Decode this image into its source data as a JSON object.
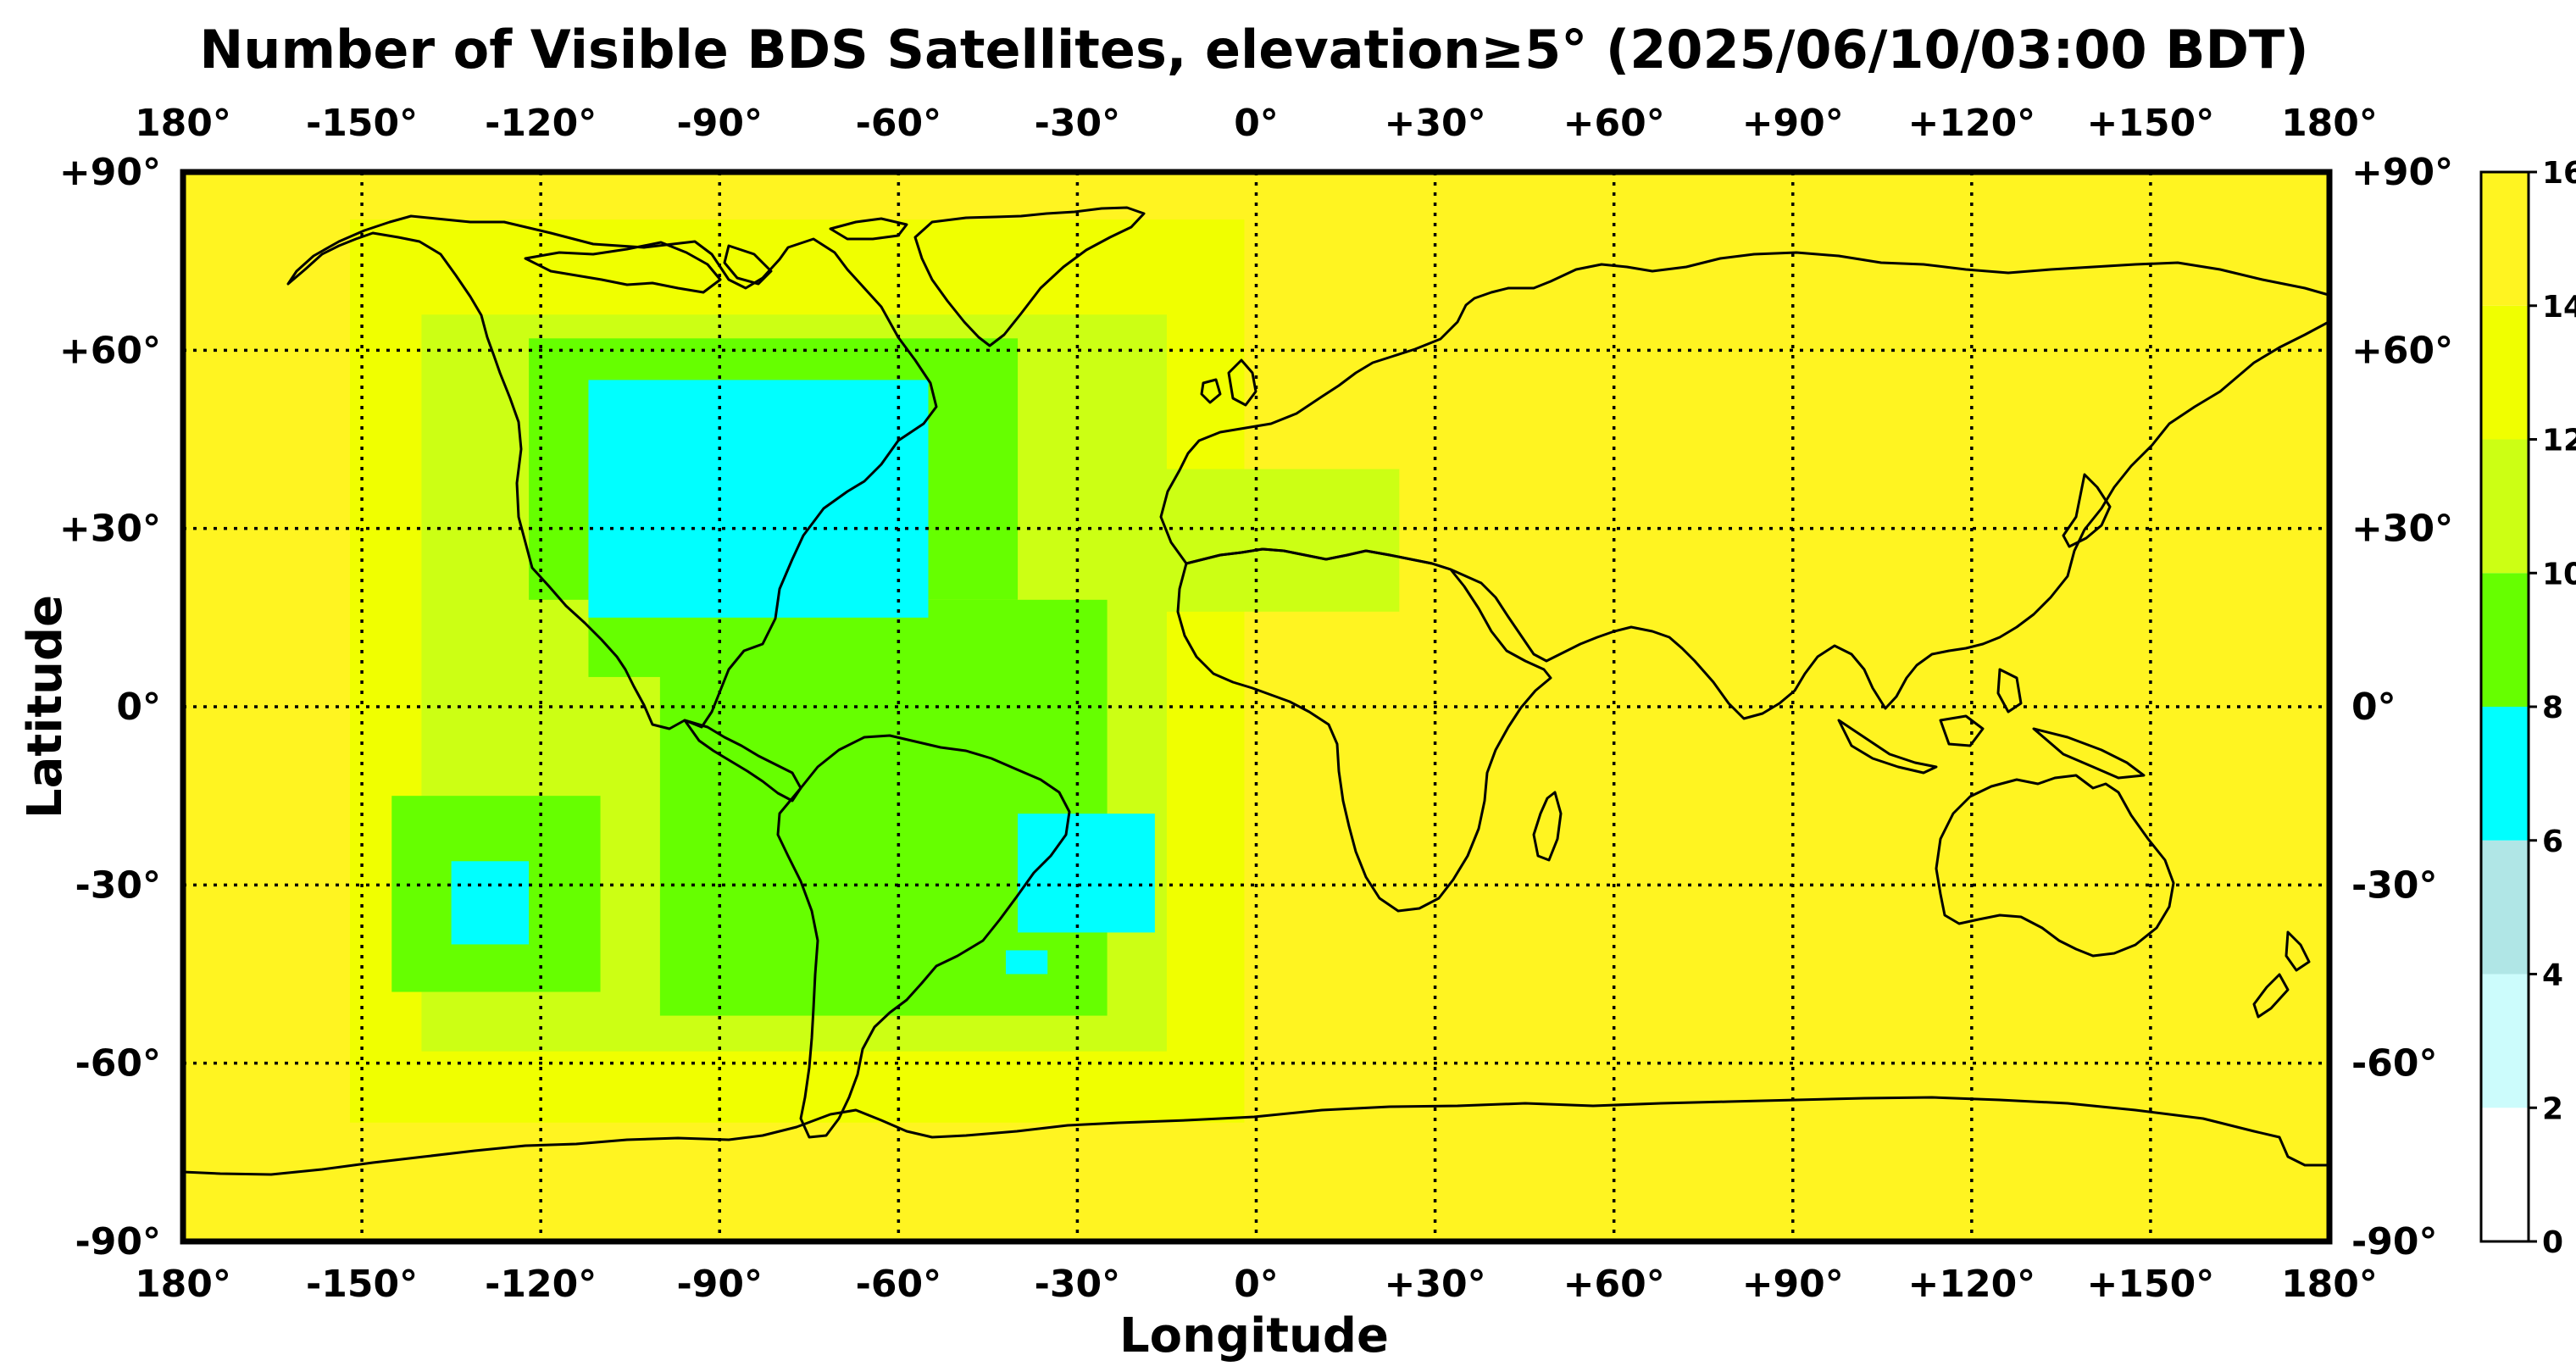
{
  "chart_data": {
    "type": "heatmap",
    "title": "Number of Visible BDS Satellites, elevation≥5° (2025/06/10/03:00 BDT)",
    "xlabel": "Longitude",
    "ylabel": "Latitude",
    "xlim": [
      -180,
      180
    ],
    "ylim": [
      -90,
      90
    ],
    "x_ticks": [
      -180,
      -150,
      -120,
      -90,
      -60,
      -30,
      0,
      30,
      60,
      90,
      120,
      150,
      180
    ],
    "x_tick_labels": [
      "180°",
      "-150°",
      "-120°",
      "-90°",
      "-60°",
      "-30°",
      "0°",
      "+30°",
      "+60°",
      "+90°",
      "+120°",
      "+150°",
      "180°"
    ],
    "y_ticks": [
      90,
      60,
      30,
      0,
      -30,
      -60,
      -90
    ],
    "y_tick_labels": [
      "+90°",
      "+60°",
      "+30°",
      "0°",
      "-30°",
      "-60°",
      "-90°"
    ],
    "grid": true,
    "colorbar": {
      "levels": [
        0,
        2,
        4,
        6,
        8,
        10,
        12,
        14,
        16
      ],
      "tick_labels": [
        "0",
        "2",
        "4",
        "6",
        "8",
        "10",
        "12",
        "14",
        "16"
      ],
      "colors": [
        "#ffffff",
        "#ccfcfc",
        "#b0e6e6",
        "#00ffff",
        "#66ff00",
        "#ccff14",
        "#f0ff00",
        "#fff421"
      ]
    },
    "field": {
      "background_count": 15,
      "regions": [
        {
          "count": 13,
          "lon_min": -152,
          "lon_max": -2,
          "lat_min": -70,
          "lat_max": 82
        },
        {
          "count": 11,
          "lon_min": -140,
          "lon_max": -15,
          "lat_min": -58,
          "lat_max": 66
        },
        {
          "count": 11,
          "lon_min": -18,
          "lon_max": 24,
          "lat_min": 16,
          "lat_max": 40
        },
        {
          "count": 9,
          "lon_min": -122,
          "lon_max": -40,
          "lat_min": 18,
          "lat_max": 62
        },
        {
          "count": 9,
          "lon_min": -100,
          "lon_max": -25,
          "lat_min": -52,
          "lat_max": 18
        },
        {
          "count": 9,
          "lon_min": -145,
          "lon_max": -110,
          "lat_min": -48,
          "lat_max": -15
        },
        {
          "count": 9,
          "lon_min": -112,
          "lon_max": -92,
          "lat_min": 5,
          "lat_max": 22
        },
        {
          "count": 7,
          "lon_min": -112,
          "lon_max": -55,
          "lat_min": 15,
          "lat_max": 55
        },
        {
          "count": 7,
          "lon_min": -40,
          "lon_max": -17,
          "lat_min": -38,
          "lat_max": -18
        },
        {
          "count": 7,
          "lon_min": -135,
          "lon_max": -122,
          "lat_min": -40,
          "lat_max": -26
        },
        {
          "count": 7,
          "lon_min": -42,
          "lon_max": -35,
          "lat_min": -45,
          "lat_max": -41
        }
      ]
    }
  }
}
